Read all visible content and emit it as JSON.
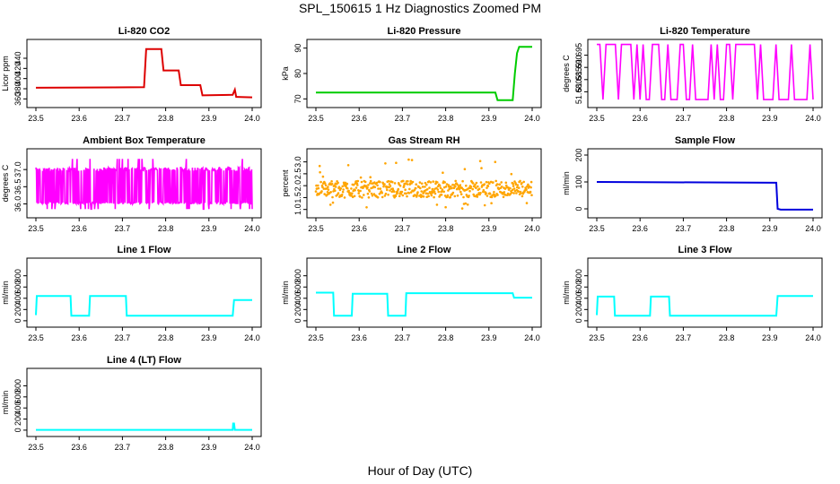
{
  "page": {
    "title": "SPL_150615  1 Hz Diagnostics Zoomed PM",
    "x_caption": "Hour of Day (UTC)"
  },
  "chart_data": [
    {
      "type": "line",
      "title": "Li-820 CO2",
      "ylabel": "Licor ppm",
      "color": "#dd0000",
      "xlim": [
        23.5,
        24.0
      ],
      "ylim": [
        350,
        470
      ],
      "x_ticks": [
        "23.5",
        "23.6",
        "23.7",
        "23.8",
        "23.9",
        "24.0"
      ],
      "y_ticks": [
        360,
        380,
        400,
        420,
        440
      ],
      "series": [
        {
          "x": [
            23.5,
            23.75,
            23.755,
            23.79,
            23.795,
            23.83,
            23.835,
            23.88,
            23.885,
            23.955,
            23.96,
            23.963,
            23.965,
            24.0
          ],
          "y": [
            382,
            383,
            458,
            458,
            416,
            416,
            387,
            387,
            367,
            368,
            378,
            364,
            364,
            363
          ]
        }
      ]
    },
    {
      "type": "line",
      "title": "Li-820 Pressure",
      "ylabel": "kPa",
      "color": "#00cc00",
      "xlim": [
        23.5,
        24.0
      ],
      "ylim": [
        68,
        92
      ],
      "x_ticks": [
        "23.5",
        "23.6",
        "23.7",
        "23.8",
        "23.9",
        "24.0"
      ],
      "y_ticks": [
        70,
        80,
        90
      ],
      "series": [
        {
          "x": [
            23.5,
            23.915,
            23.92,
            23.955,
            23.96,
            23.965,
            23.97,
            24.0
          ],
          "y": [
            72.5,
            72.5,
            69.5,
            69.5,
            80,
            88,
            90.5,
            90.5
          ]
        }
      ]
    },
    {
      "type": "line",
      "title": "Li-820 Temperature",
      "ylabel": "degrees C",
      "color": "#ff00ff",
      "xlim": [
        23.5,
        24.0
      ],
      "ylim": [
        51.675,
        51.7
      ],
      "x_ticks": [
        "23.5",
        "23.6",
        "23.7",
        "23.8",
        "23.9",
        "24.0"
      ],
      "y_ticks": [
        "51.680",
        "51.685",
        "51.690",
        "51.695"
      ],
      "levels": [
        51.6768,
        51.6994
      ]
    },
    {
      "type": "line",
      "title": "Ambient Box Temperature",
      "ylabel": "degrees C",
      "color": "#ff00ff",
      "xlim": [
        23.5,
        24.0
      ],
      "ylim": [
        35.7,
        37.5
      ],
      "x_ticks": [
        "23.5",
        "23.6",
        "23.7",
        "23.8",
        "23.9",
        "24.0"
      ],
      "y_ticks": [
        "36.0",
        "36.5",
        "37.0"
      ],
      "levels": [
        36.0,
        37.06
      ]
    },
    {
      "type": "scatter",
      "title": "Gas Stream RH",
      "ylabel": "percent",
      "color": "#ffa500",
      "xlim": [
        23.5,
        24.0
      ],
      "ylim": [
        0.8,
        3.4
      ],
      "x_ticks": [
        "23.5",
        "23.6",
        "23.7",
        "23.8",
        "23.9",
        "24.0"
      ],
      "y_ticks": [
        "1.0",
        "1.5",
        "2.0",
        "2.5",
        "3.0"
      ],
      "band": [
        1.5,
        2.2
      ]
    },
    {
      "type": "line",
      "title": "Sample Flow",
      "ylabel": "ml/min",
      "color": "#0000dd",
      "xlim": [
        23.5,
        24.0
      ],
      "ylim": [
        -20,
        210
      ],
      "x_ticks": [
        "23.5",
        "23.6",
        "23.7",
        "23.8",
        "23.9",
        "24.0"
      ],
      "y_ticks": [
        0,
        100,
        200
      ],
      "series": [
        {
          "x": [
            23.5,
            23.915,
            23.918,
            23.925,
            24.0
          ],
          "y": [
            100,
            97,
            0,
            -3,
            -3
          ]
        }
      ]
    },
    {
      "type": "line",
      "title": "Line 1 Flow",
      "ylabel": "ml/min",
      "color": "#00ffff",
      "xlim": [
        23.5,
        24.0
      ],
      "ylim": [
        -50,
        1050
      ],
      "x_ticks": [
        "23.5",
        "23.6",
        "23.7",
        "23.8",
        "23.9",
        "24.0"
      ],
      "y_ticks": [
        0,
        200,
        400,
        600,
        800
      ],
      "series": [
        {
          "x": [
            23.5,
            23.502,
            23.58,
            23.582,
            23.623,
            23.625,
            23.708,
            23.71,
            23.955,
            23.958,
            24.0
          ],
          "y": [
            100,
            440,
            440,
            90,
            90,
            440,
            440,
            90,
            90,
            370,
            370
          ]
        }
      ]
    },
    {
      "type": "line",
      "title": "Line 2 Flow",
      "ylabel": "ml/min",
      "color": "#00ffff",
      "xlim": [
        23.5,
        24.0
      ],
      "ylim": [
        -50,
        1050
      ],
      "x_ticks": [
        "23.5",
        "23.6",
        "23.7",
        "23.8",
        "23.9",
        "24.0"
      ],
      "y_ticks": [
        0,
        200,
        400,
        600,
        800
      ],
      "series": [
        {
          "x": [
            23.5,
            23.54,
            23.542,
            23.583,
            23.585,
            23.665,
            23.667,
            23.707,
            23.709,
            23.955,
            23.958,
            24.0
          ],
          "y": [
            500,
            500,
            90,
            90,
            480,
            480,
            90,
            90,
            490,
            490,
            410,
            410
          ]
        }
      ]
    },
    {
      "type": "line",
      "title": "Line 3 Flow",
      "ylabel": "ml/min",
      "color": "#00ffff",
      "xlim": [
        23.5,
        24.0
      ],
      "ylim": [
        -50,
        1050
      ],
      "x_ticks": [
        "23.5",
        "23.6",
        "23.7",
        "23.8",
        "23.9",
        "24.0"
      ],
      "y_ticks": [
        0,
        200,
        400,
        600,
        800
      ],
      "series": [
        {
          "x": [
            23.5,
            23.502,
            23.54,
            23.542,
            23.623,
            23.625,
            23.667,
            23.669,
            23.915,
            23.918,
            24.0
          ],
          "y": [
            100,
            430,
            430,
            90,
            90,
            430,
            430,
            90,
            90,
            440,
            440
          ]
        }
      ]
    },
    {
      "type": "line",
      "title": "Line 4 (LT) Flow",
      "ylabel": "ml/min",
      "color": "#00ffff",
      "xlim": [
        23.5,
        24.0
      ],
      "ylim": [
        -50,
        1050
      ],
      "x_ticks": [
        "23.5",
        "23.6",
        "23.7",
        "23.8",
        "23.9",
        "24.0"
      ],
      "y_ticks": [
        0,
        200,
        400,
        600,
        800
      ],
      "series": [
        {
          "x": [
            23.5,
            23.955,
            23.956,
            23.958,
            23.96,
            24.0
          ],
          "y": [
            5,
            5,
            120,
            120,
            5,
            5
          ]
        }
      ]
    }
  ]
}
